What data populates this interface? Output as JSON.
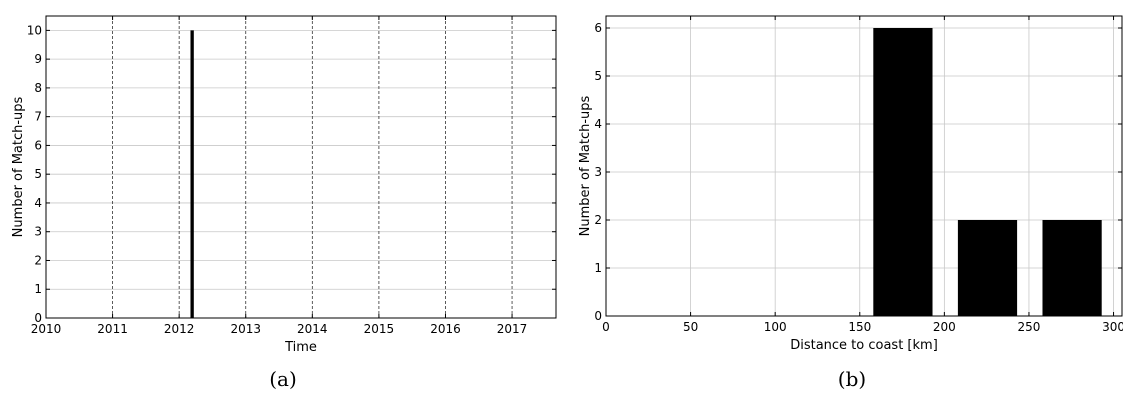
{
  "chart_data": [
    {
      "type": "bar",
      "xlabel": "Time",
      "ylabel": "Number of Match-ups",
      "caption": "(a)",
      "xlim": [
        2010,
        2017.66
      ],
      "ylim": [
        0,
        10.5
      ],
      "xticks": [
        2010,
        2011,
        2012,
        2013,
        2014,
        2015,
        2016,
        2017
      ],
      "xtick_labels": [
        "2010",
        "2011",
        "2012",
        "2013",
        "2014",
        "2015",
        "2016",
        "2017"
      ],
      "yticks": [
        0,
        1,
        2,
        3,
        4,
        5,
        6,
        7,
        8,
        9,
        10
      ],
      "ytick_labels": [
        "0",
        "1",
        "2",
        "3",
        "4",
        "5",
        "6",
        "7",
        "8",
        "9",
        "10"
      ],
      "grid": {
        "x": "dashed",
        "y": "solid"
      },
      "bars": [
        {
          "x0": 2012.17,
          "x1": 2012.22,
          "value": 10
        }
      ]
    },
    {
      "type": "bar",
      "xlabel": "Distance to coast [km]",
      "ylabel": "Number of Match-ups",
      "caption": "(b)",
      "xlim": [
        0,
        305
      ],
      "ylim": [
        0,
        6.25
      ],
      "xticks": [
        0,
        50,
        100,
        150,
        200,
        250,
        300
      ],
      "xtick_labels": [
        "0",
        "50",
        "100",
        "150",
        "200",
        "250",
        "300"
      ],
      "yticks": [
        0,
        1,
        2,
        3,
        4,
        5,
        6
      ],
      "ytick_labels": [
        "0",
        "1",
        "2",
        "3",
        "4",
        "5",
        "6"
      ],
      "grid": {
        "x": "solid",
        "y": "solid"
      },
      "bars": [
        {
          "x0": 158,
          "x1": 193,
          "value": 6
        },
        {
          "x0": 208,
          "x1": 243,
          "value": 2
        },
        {
          "x0": 258,
          "x1": 293,
          "value": 2
        }
      ]
    }
  ]
}
